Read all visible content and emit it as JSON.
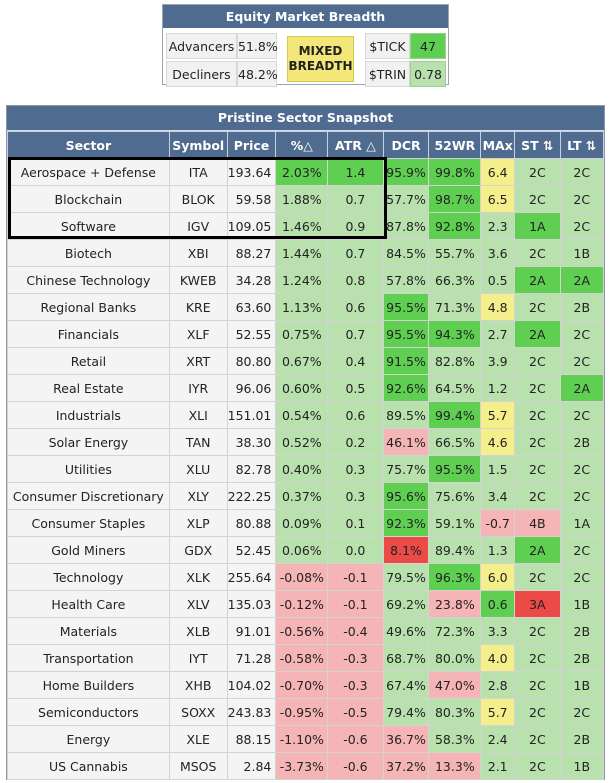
{
  "breadth": {
    "title": "Equity Market Breadth",
    "advancers_label": "Advancers",
    "advancers_value": "51.8%",
    "decliners_label": "Decliners",
    "decliners_value": "48.2%",
    "status_line1": "MIXED",
    "status_line2": "BREADTH",
    "tick_label": "$TICK",
    "tick_value": "47",
    "trin_label": "$TRIN",
    "trin_value": "0.78",
    "colors": {
      "mixed": "#f3e77a",
      "tick": "#5fcf52",
      "trin": "#b9e1ad"
    }
  },
  "sector_snapshot": {
    "title": "Pristine Sector Snapshot",
    "columns": [
      "Sector",
      "Symbol",
      "Price",
      "%△",
      "ATR △",
      "DCR",
      "52WR",
      "MAx",
      "ST ⇅",
      "LT ⇅"
    ],
    "rows": [
      {
        "sector": "Aerospace + Defense",
        "symbol": "ITA",
        "price": "193.64",
        "pct": "2.03%",
        "atr": "1.4",
        "dcr": "95.9%",
        "wr52": "99.8%",
        "max": "6.4",
        "st": "2C",
        "lt": "2C",
        "c": [
          "cg",
          "cg",
          "cg",
          "cg",
          "yl",
          "lg",
          "lg"
        ]
      },
      {
        "sector": "Blockchain",
        "symbol": "BLOK",
        "price": "59.58",
        "pct": "1.88%",
        "atr": "0.7",
        "dcr": "57.7%",
        "wr52": "98.7%",
        "max": "6.5",
        "st": "2C",
        "lt": "2C",
        "c": [
          "lg",
          "lg",
          "lg",
          "cg",
          "yl",
          "lg",
          "lg"
        ]
      },
      {
        "sector": "Software",
        "symbol": "IGV",
        "price": "109.05",
        "pct": "1.46%",
        "atr": "0.9",
        "dcr": "87.8%",
        "wr52": "92.8%",
        "max": "2.3",
        "st": "1A",
        "lt": "2C",
        "c": [
          "lg",
          "lg",
          "lg",
          "cg",
          "lg",
          "cg",
          "lg"
        ]
      },
      {
        "sector": "Biotech",
        "symbol": "XBI",
        "price": "88.27",
        "pct": "1.44%",
        "atr": "0.7",
        "dcr": "84.5%",
        "wr52": "55.7%",
        "max": "3.6",
        "st": "2C",
        "lt": "1B",
        "c": [
          "lg",
          "lg",
          "lg",
          "lg",
          "lg",
          "lg",
          "lg"
        ]
      },
      {
        "sector": "Chinese Technology",
        "symbol": "KWEB",
        "price": "34.28",
        "pct": "1.24%",
        "atr": "0.8",
        "dcr": "57.8%",
        "wr52": "66.3%",
        "max": "0.5",
        "st": "2A",
        "lt": "2A",
        "c": [
          "lg",
          "lg",
          "lg",
          "lg",
          "lg",
          "cg",
          "cg"
        ]
      },
      {
        "sector": "Regional Banks",
        "symbol": "KRE",
        "price": "63.60",
        "pct": "1.13%",
        "atr": "0.6",
        "dcr": "95.5%",
        "wr52": "71.3%",
        "max": "4.8",
        "st": "2C",
        "lt": "2B",
        "c": [
          "lg",
          "lg",
          "cg",
          "lg",
          "yl",
          "lg",
          "lg"
        ]
      },
      {
        "sector": "Financials",
        "symbol": "XLF",
        "price": "52.55",
        "pct": "0.75%",
        "atr": "0.7",
        "dcr": "95.5%",
        "wr52": "94.3%",
        "max": "2.7",
        "st": "2A",
        "lt": "2C",
        "c": [
          "lg",
          "lg",
          "cg",
          "cg",
          "lg",
          "cg",
          "lg"
        ]
      },
      {
        "sector": "Retail",
        "symbol": "XRT",
        "price": "80.80",
        "pct": "0.67%",
        "atr": "0.4",
        "dcr": "91.5%",
        "wr52": "82.8%",
        "max": "3.9",
        "st": "2C",
        "lt": "2C",
        "c": [
          "lg",
          "lg",
          "cg",
          "lg",
          "lg",
          "lg",
          "lg"
        ]
      },
      {
        "sector": "Real Estate",
        "symbol": "IYR",
        "price": "96.06",
        "pct": "0.60%",
        "atr": "0.5",
        "dcr": "92.6%",
        "wr52": "64.5%",
        "max": "1.2",
        "st": "2C",
        "lt": "2A",
        "c": [
          "lg",
          "lg",
          "cg",
          "lg",
          "lg",
          "lg",
          "cg"
        ]
      },
      {
        "sector": "Industrials",
        "symbol": "XLI",
        "price": "151.01",
        "pct": "0.54%",
        "atr": "0.6",
        "dcr": "89.5%",
        "wr52": "99.4%",
        "max": "5.7",
        "st": "2C",
        "lt": "2C",
        "c": [
          "lg",
          "lg",
          "lg",
          "cg",
          "yl",
          "lg",
          "lg"
        ]
      },
      {
        "sector": "Solar Energy",
        "symbol": "TAN",
        "price": "38.30",
        "pct": "0.52%",
        "atr": "0.2",
        "dcr": "46.1%",
        "wr52": "66.5%",
        "max": "4.6",
        "st": "2C",
        "lt": "2B",
        "c": [
          "lg",
          "lg",
          "pk",
          "lg",
          "yl",
          "lg",
          "lg"
        ]
      },
      {
        "sector": "Utilities",
        "symbol": "XLU",
        "price": "82.78",
        "pct": "0.40%",
        "atr": "0.3",
        "dcr": "75.7%",
        "wr52": "95.5%",
        "max": "1.5",
        "st": "2C",
        "lt": "2C",
        "c": [
          "lg",
          "lg",
          "lg",
          "cg",
          "lg",
          "lg",
          "lg"
        ]
      },
      {
        "sector": "Consumer Discretionary",
        "symbol": "XLY",
        "price": "222.25",
        "pct": "0.37%",
        "atr": "0.3",
        "dcr": "95.6%",
        "wr52": "75.6%",
        "max": "3.4",
        "st": "2C",
        "lt": "2C",
        "c": [
          "lg",
          "lg",
          "cg",
          "lg",
          "lg",
          "lg",
          "lg"
        ]
      },
      {
        "sector": "Consumer Staples",
        "symbol": "XLP",
        "price": "80.88",
        "pct": "0.09%",
        "atr": "0.1",
        "dcr": "92.3%",
        "wr52": "59.1%",
        "max": "-0.7",
        "st": "4B",
        "lt": "1A",
        "c": [
          "lg",
          "lg",
          "cg",
          "lg",
          "pk",
          "pk",
          "lg"
        ]
      },
      {
        "sector": "Gold Miners",
        "symbol": "GDX",
        "price": "52.45",
        "pct": "0.06%",
        "atr": "0.0",
        "dcr": "8.1%",
        "wr52": "89.4%",
        "max": "1.3",
        "st": "2A",
        "lt": "2C",
        "c": [
          "lg",
          "lg",
          "rd",
          "lg",
          "lg",
          "cg",
          "lg"
        ]
      },
      {
        "sector": "Technology",
        "symbol": "XLK",
        "price": "255.64",
        "pct": "-0.08%",
        "atr": "-0.1",
        "dcr": "79.5%",
        "wr52": "96.3%",
        "max": "6.0",
        "st": "2C",
        "lt": "2C",
        "c": [
          "pk",
          "pk",
          "lg",
          "cg",
          "yl",
          "lg",
          "lg"
        ]
      },
      {
        "sector": "Health Care",
        "symbol": "XLV",
        "price": "135.03",
        "pct": "-0.12%",
        "atr": "-0.1",
        "dcr": "69.2%",
        "wr52": "23.8%",
        "max": "0.6",
        "st": "3A",
        "lt": "1B",
        "c": [
          "pk",
          "pk",
          "lg",
          "pk",
          "cg",
          "rd",
          "lg"
        ]
      },
      {
        "sector": "Materials",
        "symbol": "XLB",
        "price": "91.01",
        "pct": "-0.56%",
        "atr": "-0.4",
        "dcr": "49.6%",
        "wr52": "72.3%",
        "max": "3.3",
        "st": "2C",
        "lt": "2B",
        "c": [
          "pk",
          "pk",
          "lg",
          "lg",
          "lg",
          "lg",
          "lg"
        ]
      },
      {
        "sector": "Transportation",
        "symbol": "IYT",
        "price": "71.28",
        "pct": "-0.58%",
        "atr": "-0.3",
        "dcr": "68.7%",
        "wr52": "80.0%",
        "max": "4.0",
        "st": "2C",
        "lt": "2B",
        "c": [
          "pk",
          "pk",
          "lg",
          "lg",
          "yl",
          "lg",
          "lg"
        ]
      },
      {
        "sector": "Home Builders",
        "symbol": "XHB",
        "price": "104.02",
        "pct": "-0.70%",
        "atr": "-0.3",
        "dcr": "67.4%",
        "wr52": "47.0%",
        "max": "2.8",
        "st": "2C",
        "lt": "1B",
        "c": [
          "pk",
          "pk",
          "lg",
          "pk",
          "lg",
          "lg",
          "lg"
        ]
      },
      {
        "sector": "Semiconductors",
        "symbol": "SOXX",
        "price": "243.83",
        "pct": "-0.95%",
        "atr": "-0.5",
        "dcr": "79.4%",
        "wr52": "80.3%",
        "max": "5.7",
        "st": "2C",
        "lt": "2C",
        "c": [
          "pk",
          "pk",
          "lg",
          "lg",
          "yl",
          "lg",
          "lg"
        ]
      },
      {
        "sector": "Energy",
        "symbol": "XLE",
        "price": "88.15",
        "pct": "-1.10%",
        "atr": "-0.6",
        "dcr": "36.7%",
        "wr52": "58.3%",
        "max": "2.4",
        "st": "2C",
        "lt": "2B",
        "c": [
          "pk",
          "pk",
          "pk",
          "lg",
          "lg",
          "lg",
          "lg"
        ]
      },
      {
        "sector": "US Cannabis",
        "symbol": "MSOS",
        "price": "2.84",
        "pct": "-3.73%",
        "atr": "-0.6",
        "dcr": "37.2%",
        "wr52": "13.3%",
        "max": "2.1",
        "st": "2C",
        "lt": "1B",
        "c": [
          "pk",
          "pk",
          "pk",
          "pk",
          "lg",
          "lg",
          "lg"
        ]
      }
    ]
  }
}
